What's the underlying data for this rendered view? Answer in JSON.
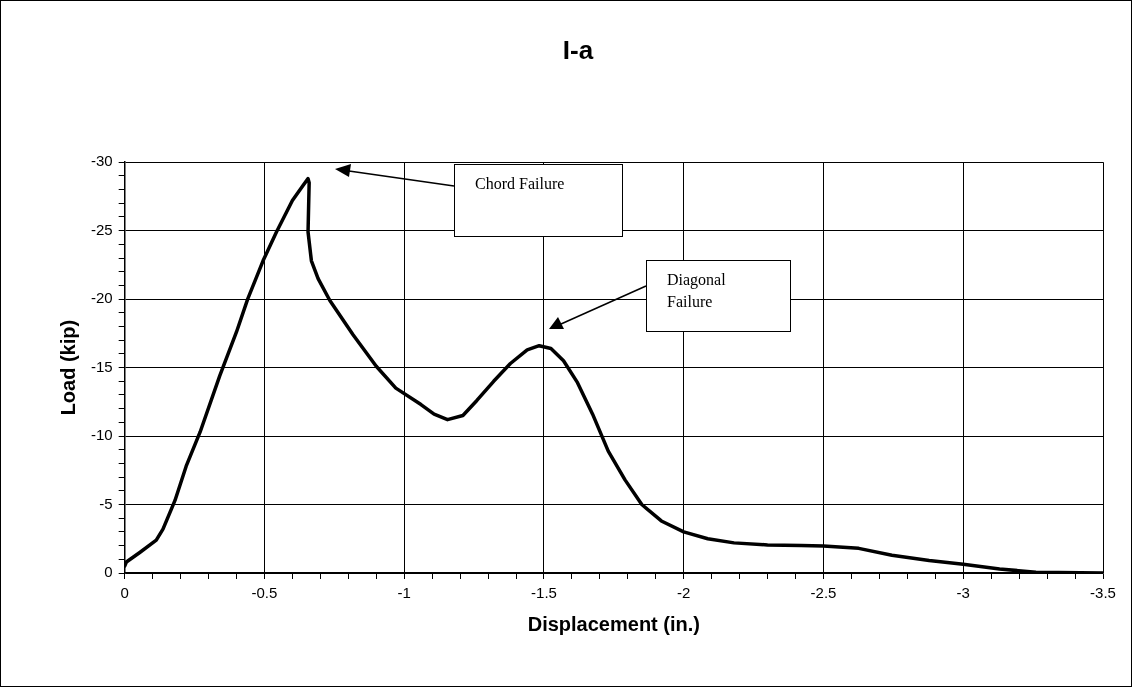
{
  "chart_data": {
    "type": "line",
    "title": "I-a",
    "xlabel": "Displacement (in.)",
    "ylabel": "Load (kip)",
    "xlim": [
      0,
      -3.5
    ],
    "ylim": [
      0,
      -30
    ],
    "xticks": [
      0,
      {
        "value": -0.1,
        "label": null
      },
      {
        "value": -0.2,
        "label": null
      },
      {
        "value": -0.3,
        "label": null
      },
      {
        "value": -0.4,
        "label": null
      },
      -0.5,
      {
        "value": -0.6,
        "label": null
      },
      {
        "value": -0.7,
        "label": null
      },
      {
        "value": -0.8,
        "label": null
      },
      {
        "value": -0.9,
        "label": null
      },
      -1,
      {
        "value": -1.1,
        "label": null
      },
      {
        "value": -1.2,
        "label": null
      },
      {
        "value": -1.3,
        "label": null
      },
      {
        "value": -1.4,
        "label": null
      },
      -1.5,
      {
        "value": -1.6,
        "label": null
      },
      {
        "value": -1.7,
        "label": null
      },
      {
        "value": -1.8,
        "label": null
      },
      {
        "value": -1.9,
        "label": null
      },
      -2,
      {
        "value": -2.1,
        "label": null
      },
      {
        "value": -2.2,
        "label": null
      },
      {
        "value": -2.3,
        "label": null
      },
      {
        "value": -2.4,
        "label": null
      },
      -2.5,
      {
        "value": -2.6,
        "label": null
      },
      {
        "value": -2.7,
        "label": null
      },
      {
        "value": -2.8,
        "label": null
      },
      {
        "value": -2.9,
        "label": null
      },
      -3,
      {
        "value": -3.1,
        "label": null
      },
      {
        "value": -3.2,
        "label": null
      },
      {
        "value": -3.3,
        "label": null
      },
      {
        "value": -3.4,
        "label": null
      },
      -3.5
    ],
    "yticks": [
      0,
      {
        "value": -1,
        "label": null
      },
      {
        "value": -2,
        "label": null
      },
      {
        "value": -3,
        "label": null
      },
      {
        "value": -4,
        "label": null
      },
      -5,
      {
        "value": -6,
        "label": null
      },
      {
        "value": -7,
        "label": null
      },
      {
        "value": -8,
        "label": null
      },
      {
        "value": -9,
        "label": null
      },
      -10,
      {
        "value": -11,
        "label": null
      },
      {
        "value": -12,
        "label": null
      },
      {
        "value": -13,
        "label": null
      },
      {
        "value": -14,
        "label": null
      },
      -15,
      {
        "value": -16,
        "label": null
      },
      {
        "value": -17,
        "label": null
      },
      {
        "value": -18,
        "label": null
      },
      {
        "value": -19,
        "label": null
      },
      -20,
      {
        "value": -21,
        "label": null
      },
      {
        "value": -22,
        "label": null
      },
      {
        "value": -23,
        "label": null
      },
      {
        "value": -24,
        "label": null
      },
      -25,
      {
        "value": -26,
        "label": null
      },
      {
        "value": -27,
        "label": null
      },
      {
        "value": -28,
        "label": null
      },
      {
        "value": -29,
        "label": null
      },
      -30
    ],
    "grid": true,
    "legend": false,
    "marker": "none",
    "line_style": "solid",
    "series": [
      {
        "color": "#000000",
        "x": [
          0,
          -0.006,
          -0.054,
          -0.113,
          -0.137,
          -0.18,
          -0.22,
          -0.27,
          -0.34,
          -0.4,
          -0.44,
          -0.495,
          -0.543,
          -0.6,
          -0.638,
          -0.656,
          -0.66,
          -0.656,
          -0.668,
          -0.692,
          -0.734,
          -0.817,
          -0.9,
          -0.97,
          -1.06,
          -1.107,
          -1.155,
          -1.21,
          -1.26,
          -1.32,
          -1.38,
          -1.44,
          -1.483,
          -1.525,
          -1.57,
          -1.62,
          -1.674,
          -1.73,
          -1.79,
          -1.85,
          -1.92,
          -2.0,
          -2.086,
          -2.18,
          -2.3,
          -2.42,
          -2.5,
          -2.626,
          -2.745,
          -2.878,
          -3.0,
          -3.13,
          -3.26,
          -3.5
        ],
        "values": [
          -0.5,
          -0.8,
          -1.5,
          -2.4,
          -3.2,
          -5.3,
          -7.8,
          -10.3,
          -14.4,
          -17.6,
          -20,
          -22.8,
          -24.9,
          -27.2,
          -28.3,
          -28.8,
          -28.5,
          -24.9,
          -22.8,
          -21.5,
          -19.9,
          -17.4,
          -15.1,
          -13.5,
          -12.3,
          -11.6,
          -11.2,
          -11.5,
          -12.6,
          -14.0,
          -15.3,
          -16.3,
          -16.6,
          -16.4,
          -15.5,
          -13.9,
          -11.6,
          -8.9,
          -6.8,
          -5.0,
          -3.8,
          -3.0,
          -2.5,
          -2.2,
          -2.05,
          -2.0,
          -1.97,
          -1.8,
          -1.3,
          -0.92,
          -0.64,
          -0.3,
          -0.05,
          0
        ]
      }
    ],
    "annotations": [
      "Chord Failure",
      "Diagonal Failure"
    ]
  }
}
